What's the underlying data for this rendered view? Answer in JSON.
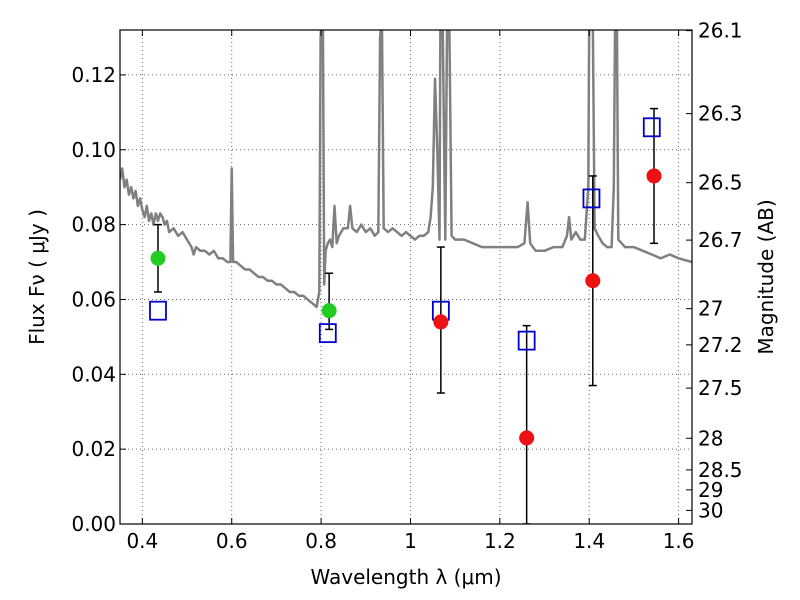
{
  "chart_data": {
    "type": "scatter",
    "xlabel": "Wavelength  λ (μm)",
    "ylabel": "Flux  Fν  ( μJy )",
    "y2label": "Magnitude (AB)",
    "xlim": [
      0.35,
      1.63
    ],
    "ylim": [
      0.0,
      0.132
    ],
    "grid": true,
    "x_ticks": [
      {
        "value": 0.4,
        "label": "0.4"
      },
      {
        "value": 0.6,
        "label": "0.6"
      },
      {
        "value": 0.8,
        "label": "0.8"
      },
      {
        "value": 1.0,
        "label": "1"
      },
      {
        "value": 1.2,
        "label": "1.2"
      },
      {
        "value": 1.4,
        "label": "1.4"
      },
      {
        "value": 1.6,
        "label": "1.6"
      }
    ],
    "y_ticks": [
      {
        "value": 0.0,
        "label": "0.00"
      },
      {
        "value": 0.02,
        "label": "0.02"
      },
      {
        "value": 0.04,
        "label": "0.04"
      },
      {
        "value": 0.06,
        "label": "0.06"
      },
      {
        "value": 0.08,
        "label": "0.08"
      },
      {
        "value": 0.1,
        "label": "0.10"
      },
      {
        "value": 0.12,
        "label": "0.12"
      }
    ],
    "y2_ticks": [
      {
        "mag": 26.1,
        "label": "26.1"
      },
      {
        "mag": 26.3,
        "label": "26.3"
      },
      {
        "mag": 26.5,
        "label": "26.5"
      },
      {
        "mag": 26.7,
        "label": "26.7"
      },
      {
        "mag": 27.0,
        "label": "27"
      },
      {
        "mag": 27.2,
        "label": "27.2"
      },
      {
        "mag": 27.5,
        "label": "27.5"
      },
      {
        "mag": 28.0,
        "label": "28"
      },
      {
        "mag": 28.5,
        "label": "28.5"
      },
      {
        "mag": 29.0,
        "label": "29"
      },
      {
        "mag": 30.0,
        "label": "30"
      }
    ],
    "series": [
      {
        "kind": "line",
        "color": "#808080",
        "points": [
          [
            0.35,
            0.092
          ],
          [
            0.355,
            0.095
          ],
          [
            0.36,
            0.09
          ],
          [
            0.365,
            0.092
          ],
          [
            0.37,
            0.088
          ],
          [
            0.375,
            0.09
          ],
          [
            0.38,
            0.087
          ],
          [
            0.385,
            0.089
          ],
          [
            0.39,
            0.085
          ],
          [
            0.395,
            0.087
          ],
          [
            0.4,
            0.084
          ],
          [
            0.405,
            0.082
          ],
          [
            0.41,
            0.085
          ],
          [
            0.415,
            0.081
          ],
          [
            0.42,
            0.083
          ],
          [
            0.425,
            0.08
          ],
          [
            0.43,
            0.083
          ],
          [
            0.435,
            0.081
          ],
          [
            0.44,
            0.083
          ],
          [
            0.445,
            0.082
          ],
          [
            0.45,
            0.08
          ],
          [
            0.455,
            0.081
          ],
          [
            0.46,
            0.078
          ],
          [
            0.47,
            0.079
          ],
          [
            0.48,
            0.077
          ],
          [
            0.49,
            0.078
          ],
          [
            0.5,
            0.076
          ],
          [
            0.51,
            0.074
          ],
          [
            0.515,
            0.072
          ],
          [
            0.52,
            0.074
          ],
          [
            0.53,
            0.073
          ],
          [
            0.54,
            0.073
          ],
          [
            0.55,
            0.072
          ],
          [
            0.56,
            0.073
          ],
          [
            0.57,
            0.071
          ],
          [
            0.58,
            0.071
          ],
          [
            0.59,
            0.07
          ],
          [
            0.597,
            0.07
          ],
          [
            0.6,
            0.095
          ],
          [
            0.603,
            0.07
          ],
          [
            0.61,
            0.07
          ],
          [
            0.62,
            0.069
          ],
          [
            0.63,
            0.068
          ],
          [
            0.64,
            0.068
          ],
          [
            0.65,
            0.067
          ],
          [
            0.66,
            0.066
          ],
          [
            0.67,
            0.066
          ],
          [
            0.68,
            0.065
          ],
          [
            0.69,
            0.065
          ],
          [
            0.7,
            0.064
          ],
          [
            0.71,
            0.064
          ],
          [
            0.72,
            0.063
          ],
          [
            0.73,
            0.062
          ],
          [
            0.74,
            0.062
          ],
          [
            0.75,
            0.061
          ],
          [
            0.76,
            0.061
          ],
          [
            0.77,
            0.06
          ],
          [
            0.78,
            0.059
          ],
          [
            0.79,
            0.058
          ],
          [
            0.796,
            0.062
          ],
          [
            0.799,
            0.13
          ],
          [
            0.801,
            0.135
          ],
          [
            0.804,
            0.135
          ],
          [
            0.807,
            0.064
          ],
          [
            0.81,
            0.073
          ],
          [
            0.815,
            0.075
          ],
          [
            0.82,
            0.076
          ],
          [
            0.825,
            0.074
          ],
          [
            0.83,
            0.085
          ],
          [
            0.835,
            0.075
          ],
          [
            0.84,
            0.077
          ],
          [
            0.85,
            0.079
          ],
          [
            0.86,
            0.079
          ],
          [
            0.865,
            0.085
          ],
          [
            0.87,
            0.079
          ],
          [
            0.88,
            0.078
          ],
          [
            0.89,
            0.08
          ],
          [
            0.9,
            0.078
          ],
          [
            0.91,
            0.079
          ],
          [
            0.92,
            0.077
          ],
          [
            0.928,
            0.078
          ],
          [
            0.932,
            0.13
          ],
          [
            0.936,
            0.135
          ],
          [
            0.94,
            0.079
          ],
          [
            0.95,
            0.078
          ],
          [
            0.96,
            0.079
          ],
          [
            0.97,
            0.078
          ],
          [
            0.98,
            0.077
          ],
          [
            0.99,
            0.078
          ],
          [
            1.0,
            0.077
          ],
          [
            1.01,
            0.076
          ],
          [
            1.02,
            0.077
          ],
          [
            1.03,
            0.077
          ],
          [
            1.04,
            0.078
          ],
          [
            1.045,
            0.082
          ],
          [
            1.05,
            0.09
          ],
          [
            1.055,
            0.119
          ],
          [
            1.06,
            0.1
          ],
          [
            1.065,
            0.076
          ],
          [
            1.067,
            0.135
          ],
          [
            1.072,
            0.135
          ],
          [
            1.078,
            0.076
          ],
          [
            1.082,
            0.135
          ],
          [
            1.087,
            0.135
          ],
          [
            1.092,
            0.077
          ],
          [
            1.1,
            0.076
          ],
          [
            1.12,
            0.076
          ],
          [
            1.14,
            0.075
          ],
          [
            1.16,
            0.074
          ],
          [
            1.18,
            0.074
          ],
          [
            1.2,
            0.074
          ],
          [
            1.22,
            0.074
          ],
          [
            1.24,
            0.074
          ],
          [
            1.255,
            0.075
          ],
          [
            1.262,
            0.086
          ],
          [
            1.268,
            0.075
          ],
          [
            1.28,
            0.073
          ],
          [
            1.3,
            0.073
          ],
          [
            1.32,
            0.074
          ],
          [
            1.34,
            0.074
          ],
          [
            1.35,
            0.077
          ],
          [
            1.355,
            0.082
          ],
          [
            1.36,
            0.076
          ],
          [
            1.37,
            0.078
          ],
          [
            1.38,
            0.076
          ],
          [
            1.39,
            0.076
          ],
          [
            1.398,
            0.09
          ],
          [
            1.4,
            0.135
          ],
          [
            1.408,
            0.135
          ],
          [
            1.412,
            0.079
          ],
          [
            1.42,
            0.077
          ],
          [
            1.43,
            0.075
          ],
          [
            1.44,
            0.074
          ],
          [
            1.45,
            0.074
          ],
          [
            1.455,
            0.09
          ],
          [
            1.458,
            0.135
          ],
          [
            1.462,
            0.135
          ],
          [
            1.465,
            0.076
          ],
          [
            1.48,
            0.074
          ],
          [
            1.5,
            0.074
          ],
          [
            1.52,
            0.073
          ],
          [
            1.54,
            0.072
          ],
          [
            1.56,
            0.071
          ],
          [
            1.58,
            0.072
          ],
          [
            1.6,
            0.071
          ],
          [
            1.63,
            0.07
          ]
        ]
      },
      {
        "kind": "errorbar",
        "color": "#000000",
        "points": [
          {
            "x": 0.435,
            "lo": 0.062,
            "hi": 0.08
          },
          {
            "x": 0.818,
            "lo": 0.052,
            "hi": 0.067
          },
          {
            "x": 1.068,
            "lo": 0.035,
            "hi": 0.074
          },
          {
            "x": 1.26,
            "lo": 0.0,
            "hi": 0.053
          },
          {
            "x": 1.408,
            "lo": 0.037,
            "hi": 0.093
          },
          {
            "x": 1.545,
            "lo": 0.075,
            "hi": 0.111
          }
        ]
      },
      {
        "kind": "square",
        "color": "#0000cc",
        "points": [
          [
            0.435,
            0.057
          ],
          [
            0.815,
            0.051
          ],
          [
            1.068,
            0.057
          ],
          [
            1.26,
            0.049
          ],
          [
            1.405,
            0.087
          ],
          [
            1.54,
            0.106
          ]
        ]
      },
      {
        "kind": "circle",
        "color": "#22cc22",
        "points": [
          [
            0.435,
            0.071
          ],
          [
            0.818,
            0.057
          ]
        ]
      },
      {
        "kind": "circle",
        "color": "#ee1111",
        "points": [
          [
            1.068,
            0.054
          ],
          [
            1.26,
            0.023
          ],
          [
            1.408,
            0.065
          ],
          [
            1.545,
            0.093
          ]
        ]
      }
    ]
  }
}
